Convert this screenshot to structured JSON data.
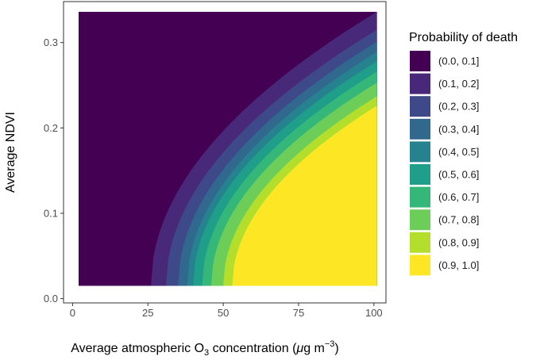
{
  "chart_data": {
    "type": "heatmap",
    "title": "",
    "xlabel": {
      "prefix": "Average atmospheric O",
      "sub": "3",
      "middle": " concentration (",
      "mu": "μ",
      "unit": "g m",
      "sup": "−3",
      "suffix": ")"
    },
    "ylabel": "Average NDVI",
    "xlim": [
      -3,
      104
    ],
    "ylim": [
      -0.005,
      0.348
    ],
    "x_range": [
      2,
      101
    ],
    "y_range": [
      0.015,
      0.336
    ],
    "x_ticks": [
      {
        "value": 0,
        "label": "0"
      },
      {
        "value": 25,
        "label": "25"
      },
      {
        "value": 50,
        "label": "50"
      },
      {
        "value": 75,
        "label": "75"
      },
      {
        "value": 100,
        "label": "100"
      }
    ],
    "y_ticks": [
      {
        "value": 0.0,
        "label": "0.0"
      },
      {
        "value": 0.1,
        "label": "0.1"
      },
      {
        "value": 0.2,
        "label": "0.2"
      },
      {
        "value": 0.3,
        "label": "0.3"
      }
    ],
    "grid": false,
    "legend": {
      "title": "Probability of death",
      "position": "right",
      "items": [
        {
          "label": "(0.0, 0.1]",
          "color": "#440154"
        },
        {
          "label": "(0.1, 0.2]",
          "color": "#482878"
        },
        {
          "label": "(0.2, 0.3]",
          "color": "#3E4989"
        },
        {
          "label": "(0.3, 0.4]",
          "color": "#31688E"
        },
        {
          "label": "(0.4, 0.5]",
          "color": "#26828E"
        },
        {
          "label": "(0.5, 0.6]",
          "color": "#1F9E89"
        },
        {
          "label": "(0.6, 0.7]",
          "color": "#35B779"
        },
        {
          "label": "(0.7, 0.8]",
          "color": "#6DCD59"
        },
        {
          "label": "(0.8, 0.9]",
          "color": "#B4DE2C"
        },
        {
          "label": "(0.9, 1.0]",
          "color": "#FDE725"
        }
      ]
    },
    "contour_boundaries": [
      {
        "between": "(0.0, 0.1] | (0.1, 0.2]",
        "x_at_bottom": 26,
        "x_at_top": 101,
        "y_at_right": 0.336
      },
      {
        "between": "(0.1, 0.2] | (0.2, 0.3]",
        "x_at_bottom": 31,
        "x_at_top": null,
        "y_at_right": 0.315
      },
      {
        "between": "(0.2, 0.3] | (0.3, 0.4]",
        "x_at_bottom": 35,
        "x_at_top": null,
        "y_at_right": 0.301
      },
      {
        "between": "(0.3, 0.4] | (0.4, 0.5]",
        "x_at_bottom": 38,
        "x_at_top": null,
        "y_at_right": 0.289
      },
      {
        "between": "(0.4, 0.5] | (0.5, 0.6]",
        "x_at_bottom": 40,
        "x_at_top": null,
        "y_at_right": 0.278
      },
      {
        "between": "(0.5, 0.6] | (0.6, 0.7]",
        "x_at_bottom": 43,
        "x_at_top": null,
        "y_at_right": 0.266
      },
      {
        "between": "(0.6, 0.7] | (0.7, 0.8]",
        "x_at_bottom": 46,
        "x_at_top": null,
        "y_at_right": 0.253
      },
      {
        "between": "(0.7, 0.8] | (0.8, 0.9]",
        "x_at_bottom": 50,
        "x_at_top": null,
        "y_at_right": 0.237
      },
      {
        "between": "(0.8, 0.9] | (0.9, 1.0]",
        "x_at_bottom": 53,
        "x_at_top": null,
        "y_at_right": 0.226
      }
    ]
  }
}
